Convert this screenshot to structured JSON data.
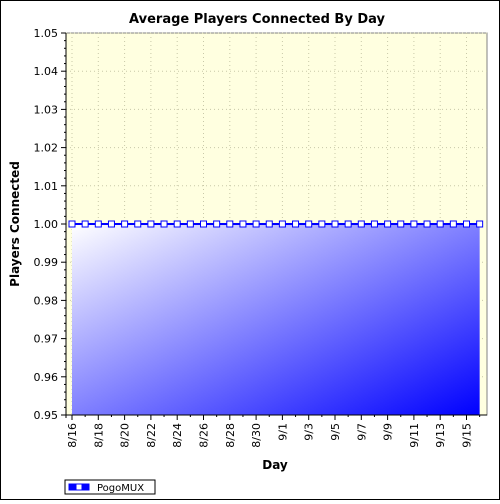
{
  "chart_data": {
    "type": "area",
    "title": "Average Players Connected By Day",
    "xlabel": "Day",
    "ylabel": "Players Connected",
    "ylim": [
      0.95,
      1.05
    ],
    "y_ticks": [
      "0.95",
      "0.96",
      "0.97",
      "0.98",
      "0.99",
      "1.00",
      "1.01",
      "1.02",
      "1.03",
      "1.04",
      "1.05"
    ],
    "x_tick_labels": [
      "8/16",
      "8/18",
      "8/20",
      "8/22",
      "8/24",
      "8/26",
      "8/28",
      "8/30",
      "9/1",
      "9/3",
      "9/5",
      "9/7",
      "9/9",
      "9/11",
      "9/13",
      "9/15"
    ],
    "x_days": [
      "8/16",
      "8/17",
      "8/18",
      "8/19",
      "8/20",
      "8/21",
      "8/22",
      "8/23",
      "8/24",
      "8/25",
      "8/26",
      "8/27",
      "8/28",
      "8/29",
      "8/30",
      "8/31",
      "9/1",
      "9/2",
      "9/3",
      "9/4",
      "9/5",
      "9/6",
      "9/7",
      "9/8",
      "9/9",
      "9/10",
      "9/11",
      "9/12",
      "9/13",
      "9/14",
      "9/15",
      "9/16"
    ],
    "grid": true,
    "legend_position": "bottom-left",
    "series": [
      {
        "name": "PogoMUX",
        "values": [
          1,
          1,
          1,
          1,
          1,
          1,
          1,
          1,
          1,
          1,
          1,
          1,
          1,
          1,
          1,
          1,
          1,
          1,
          1,
          1,
          1,
          1,
          1,
          1,
          1,
          1,
          1,
          1,
          1,
          1,
          1,
          1
        ],
        "line_color": "#0000ff",
        "fill_from": "#ffffff",
        "fill_to": "#0000ff"
      }
    ],
    "plot_background": "#ffffe0"
  }
}
